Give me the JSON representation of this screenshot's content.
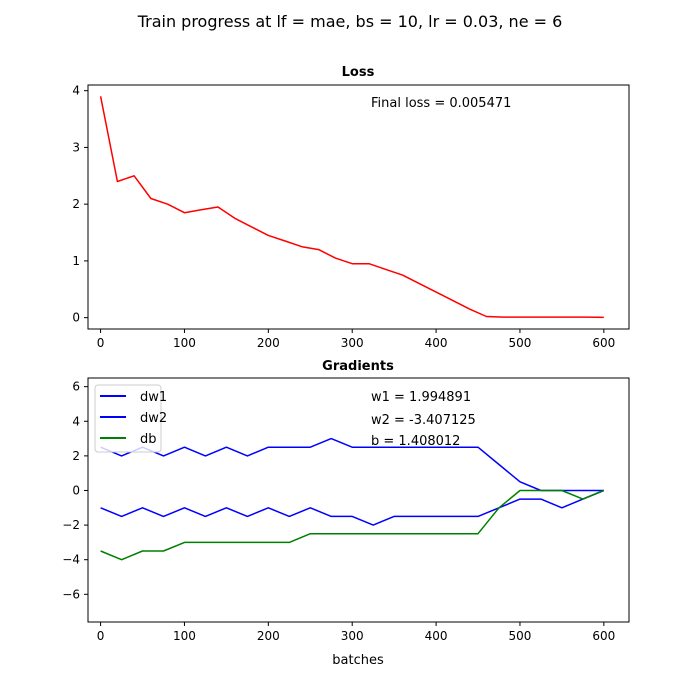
{
  "figure": {
    "suptitle": "Train progress at lf = mae, bs = 10, lr = 0.03, ne = 6"
  },
  "chart_data": [
    {
      "type": "line",
      "title": "Loss",
      "xlabel": "",
      "ylabel": "",
      "xlim": [
        -15,
        630
      ],
      "ylim": [
        -0.2,
        4.1
      ],
      "xticks": [
        "0",
        "100",
        "200",
        "300",
        "400",
        "500",
        "600"
      ],
      "yticks": [
        "0",
        "1",
        "2",
        "3",
        "4"
      ],
      "grid": false,
      "annotations": [
        "Final loss = 0.005471"
      ],
      "series": [
        {
          "color": "#ff0000",
          "x": [
            0,
            20,
            40,
            60,
            80,
            100,
            120,
            140,
            160,
            180,
            200,
            220,
            240,
            260,
            280,
            300,
            320,
            340,
            360,
            380,
            400,
            420,
            440,
            460,
            480,
            500,
            520,
            540,
            560,
            580,
            600
          ],
          "y": [
            3.9,
            2.4,
            2.5,
            2.1,
            2.0,
            1.85,
            1.9,
            1.95,
            1.75,
            1.6,
            1.45,
            1.35,
            1.25,
            1.2,
            1.05,
            0.95,
            0.95,
            0.85,
            0.75,
            0.6,
            0.45,
            0.3,
            0.15,
            0.02,
            0.01,
            0.01,
            0.01,
            0.01,
            0.01,
            0.01,
            0.005
          ]
        }
      ]
    },
    {
      "type": "line",
      "title": "Gradients",
      "xlabel": "batches",
      "ylabel": "",
      "xlim": [
        -15,
        630
      ],
      "ylim": [
        -7.6,
        6.5
      ],
      "xticks": [
        "0",
        "100",
        "200",
        "300",
        "400",
        "500",
        "600"
      ],
      "yticks": [
        "−6",
        "−4",
        "−2",
        "0",
        "2",
        "4",
        "6"
      ],
      "grid": false,
      "legend_position": "top-left",
      "annotations": [
        "w1 = 1.994891",
        "w2 = -3.407125",
        "b = 1.408012"
      ],
      "series": [
        {
          "name": "dw1",
          "color": "#0000ff",
          "x": [
            0,
            25,
            50,
            75,
            100,
            125,
            150,
            175,
            200,
            225,
            250,
            275,
            300,
            325,
            350,
            375,
            400,
            425,
            450,
            475,
            500,
            525,
            550,
            575,
            600
          ],
          "y": [
            2.5,
            2.0,
            2.5,
            2.0,
            2.5,
            2.0,
            2.5,
            2.0,
            2.5,
            2.5,
            2.5,
            3.0,
            2.5,
            2.5,
            2.5,
            2.5,
            2.5,
            2.5,
            2.5,
            1.5,
            0.5,
            0.0,
            0.0,
            0.0,
            0.0
          ]
        },
        {
          "name": "dw2",
          "color": "#0000ff",
          "x": [
            0,
            25,
            50,
            75,
            100,
            125,
            150,
            175,
            200,
            225,
            250,
            275,
            300,
            325,
            350,
            375,
            400,
            425,
            450,
            475,
            500,
            525,
            550,
            575,
            600
          ],
          "y": [
            -1.0,
            -1.5,
            -1.0,
            -1.5,
            -1.0,
            -1.5,
            -1.0,
            -1.5,
            -1.0,
            -1.5,
            -1.0,
            -1.5,
            -1.5,
            -2.0,
            -1.5,
            -1.5,
            -1.5,
            -1.5,
            -1.5,
            -1.0,
            -0.5,
            -0.5,
            -1.0,
            -0.5,
            0.0
          ]
        },
        {
          "name": "db",
          "color": "#008000",
          "x": [
            0,
            25,
            50,
            75,
            100,
            125,
            150,
            175,
            200,
            225,
            250,
            275,
            300,
            325,
            350,
            375,
            400,
            425,
            450,
            475,
            500,
            525,
            550,
            575,
            600
          ],
          "y": [
            -3.5,
            -4.0,
            -3.5,
            -3.5,
            -3.0,
            -3.0,
            -3.0,
            -3.0,
            -3.0,
            -3.0,
            -2.5,
            -2.5,
            -2.5,
            -2.5,
            -2.5,
            -2.5,
            -2.5,
            -2.5,
            -2.5,
            -1.0,
            0.0,
            0.0,
            0.0,
            -0.5,
            0.0
          ]
        }
      ]
    }
  ]
}
